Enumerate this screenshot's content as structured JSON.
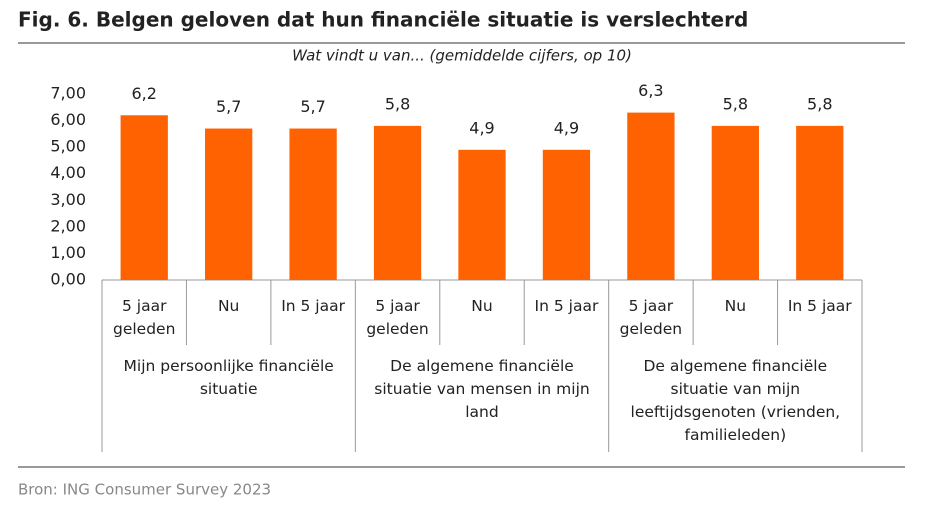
{
  "chart_data": {
    "type": "bar",
    "title": "Fig. 6. Belgen geloven dat hun financiële situatie is verslechterd",
    "subtitle": "Wat vindt u van... (gemiddelde cijfers, op 10)",
    "categories": [
      "5 jaar geleden",
      "Nu",
      "In 5 jaar",
      "5 jaar geleden",
      "Nu",
      "In 5 jaar",
      "5 jaar geleden",
      "Nu",
      "In 5 jaar"
    ],
    "groups": [
      "Mijn persoonlijke financiële situatie",
      "De algemene financiële situatie van mensen in mijn land",
      "De algemene financiële situatie van mijn leeftijdsgenoten (vrienden, familieleden)"
    ],
    "values": [
      6.2,
      5.7,
      5.7,
      5.8,
      4.9,
      4.9,
      6.3,
      5.8,
      5.8
    ],
    "value_labels": [
      "6,2",
      "5,7",
      "5,7",
      "5,8",
      "4,9",
      "4,9",
      "6,3",
      "5,8",
      "5,8"
    ],
    "color": "#ff6200",
    "ylim": [
      0,
      7
    ],
    "yticks": [
      {
        "value": 0,
        "label": "0,00"
      },
      {
        "value": 1,
        "label": "1,00"
      },
      {
        "value": 2,
        "label": "2,00"
      },
      {
        "value": 3,
        "label": "3,00"
      },
      {
        "value": 4,
        "label": "4,00"
      },
      {
        "value": 5,
        "label": "5,00"
      },
      {
        "value": 6,
        "label": "6,00"
      },
      {
        "value": 7,
        "label": "7,00"
      }
    ],
    "grid": false,
    "source": "Bron: ING Consumer Survey 2023"
  }
}
